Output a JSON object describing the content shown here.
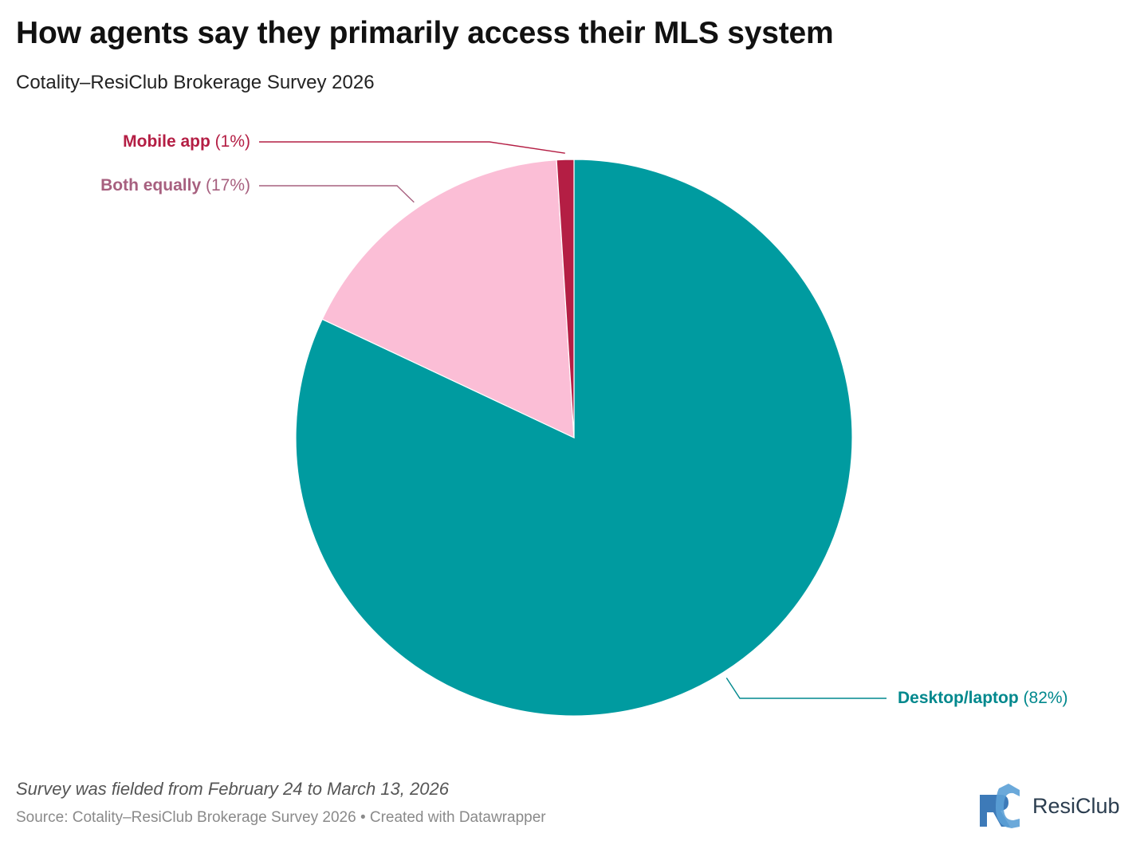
{
  "header": {
    "title": "How agents say they primarily access their MLS system",
    "subtitle": "Cotality–ResiClub Brokerage Survey 2026"
  },
  "chart_data": {
    "type": "pie",
    "title": "How agents say they primarily access their MLS system",
    "subtitle": "Cotality–ResiClub Brokerage Survey 2026",
    "slices": [
      {
        "label": "Desktop/laptop",
        "value": 82,
        "value_label": "(82%)",
        "color": "#009ba0",
        "label_color": "#00888d"
      },
      {
        "label": "Both equally",
        "value": 17,
        "value_label": "(17%)",
        "color": "#fbbed6",
        "label_color": "#a7607f"
      },
      {
        "label": "Mobile app",
        "value": 1,
        "value_label": "(1%)",
        "color": "#b41e44",
        "label_color": "#b41e44"
      }
    ]
  },
  "footer": {
    "note": "Survey was fielded from February 24 to March 13, 2026",
    "source": "Source: Cotality–ResiClub Brokerage Survey 2026 • Created with Datawrapper"
  },
  "logo": {
    "icon": "resiclub-logo-icon",
    "text": "ResiClub",
    "color": "#3d7ab8"
  }
}
